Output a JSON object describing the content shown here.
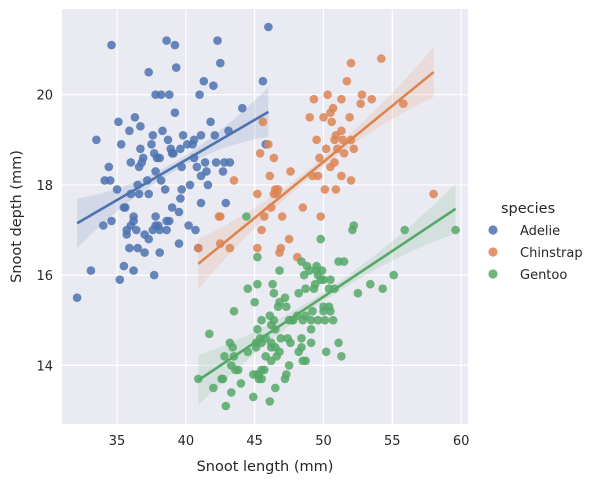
{
  "chart_data": {
    "type": "scatter",
    "xlabel": "Snoot length (mm)",
    "ylabel": "Snoot depth (mm)",
    "xlim": [
      31,
      60.5
    ],
    "ylim": [
      12.7,
      21.9
    ],
    "xticks": [
      35,
      40,
      45,
      50,
      55,
      60
    ],
    "yticks": [
      14,
      16,
      18,
      20
    ],
    "grid": true,
    "legend": {
      "title": "species",
      "placement": "right"
    },
    "series": [
      {
        "name": "Adelie",
        "color": "#4c72b0",
        "regression": {
          "x": [
            32.1,
            46.0
          ],
          "y": [
            17.15,
            19.62
          ]
        },
        "points": [
          [
            32.1,
            15.5
          ],
          [
            33.1,
            16.1
          ],
          [
            33.5,
            19.0
          ],
          [
            34.0,
            17.1
          ],
          [
            34.1,
            18.1
          ],
          [
            34.4,
            18.4
          ],
          [
            34.5,
            18.1
          ],
          [
            34.6,
            21.1
          ],
          [
            34.6,
            17.2
          ],
          [
            35.0,
            17.9
          ],
          [
            35.1,
            19.4
          ],
          [
            35.2,
            15.9
          ],
          [
            35.3,
            18.9
          ],
          [
            35.5,
            16.2
          ],
          [
            35.5,
            17.5
          ],
          [
            35.6,
            17.5
          ],
          [
            35.7,
            16.9
          ],
          [
            35.7,
            17.0
          ],
          [
            35.9,
            16.6
          ],
          [
            35.9,
            19.2
          ],
          [
            36.0,
            18.5
          ],
          [
            36.0,
            17.8
          ],
          [
            36.0,
            17.1
          ],
          [
            36.2,
            16.1
          ],
          [
            36.2,
            17.2
          ],
          [
            36.2,
            17.3
          ],
          [
            36.3,
            19.5
          ],
          [
            36.4,
            17.0
          ],
          [
            36.5,
            18.0
          ],
          [
            36.5,
            16.6
          ],
          [
            36.6,
            17.8
          ],
          [
            36.6,
            18.4
          ],
          [
            36.7,
            19.3
          ],
          [
            36.7,
            18.8
          ],
          [
            36.8,
            18.5
          ],
          [
            36.9,
            18.6
          ],
          [
            37.0,
            16.9
          ],
          [
            37.0,
            16.5
          ],
          [
            37.2,
            18.1
          ],
          [
            37.3,
            20.5
          ],
          [
            37.3,
            17.8
          ],
          [
            37.3,
            16.8
          ],
          [
            37.5,
            18.9
          ],
          [
            37.6,
            19.1
          ],
          [
            37.6,
            17.0
          ],
          [
            37.7,
            18.7
          ],
          [
            37.7,
            16.0
          ],
          [
            37.8,
            18.3
          ],
          [
            37.8,
            20.0
          ],
          [
            37.8,
            17.1
          ],
          [
            37.8,
            17.3
          ],
          [
            37.9,
            18.6
          ],
          [
            38.0,
            17.1
          ],
          [
            38.1,
            18.6
          ],
          [
            38.1,
            17.0
          ],
          [
            38.1,
            16.5
          ],
          [
            38.2,
            18.1
          ],
          [
            38.2,
            20.0
          ],
          [
            38.3,
            19.2
          ],
          [
            38.5,
            17.9
          ],
          [
            38.6,
            21.2
          ],
          [
            38.6,
            17.2
          ],
          [
            38.6,
            17.0
          ],
          [
            38.7,
            19.0
          ],
          [
            38.8,
            17.2
          ],
          [
            38.8,
            20.0
          ],
          [
            38.9,
            18.8
          ],
          [
            39.0,
            17.5
          ],
          [
            39.0,
            18.7
          ],
          [
            39.1,
            18.7
          ],
          [
            39.2,
            19.6
          ],
          [
            39.2,
            21.1
          ],
          [
            39.3,
            20.6
          ],
          [
            39.5,
            17.4
          ],
          [
            39.5,
            16.7
          ],
          [
            39.6,
            18.8
          ],
          [
            39.6,
            17.7
          ],
          [
            39.7,
            18.4
          ],
          [
            39.7,
            17.9
          ],
          [
            39.8,
            19.1
          ],
          [
            40.1,
            18.9
          ],
          [
            40.2,
            17.1
          ],
          [
            40.3,
            18.0
          ],
          [
            40.5,
            18.9
          ],
          [
            40.6,
            18.6
          ],
          [
            40.6,
            19.0
          ],
          [
            40.7,
            17.0
          ],
          [
            40.8,
            18.4
          ],
          [
            40.9,
            16.6
          ],
          [
            41.0,
            20.0
          ],
          [
            41.1,
            17.6
          ],
          [
            41.1,
            18.2
          ],
          [
            41.1,
            19.1
          ],
          [
            41.3,
            20.3
          ],
          [
            41.4,
            18.5
          ],
          [
            41.5,
            18.3
          ],
          [
            41.6,
            18.0
          ],
          [
            41.8,
            19.4
          ],
          [
            42.0,
            20.2
          ],
          [
            42.1,
            19.1
          ],
          [
            42.2,
            18.5
          ],
          [
            42.3,
            21.2
          ],
          [
            42.5,
            20.7
          ],
          [
            42.7,
            18.3
          ],
          [
            42.8,
            18.5
          ],
          [
            42.9,
            17.6
          ],
          [
            43.1,
            19.2
          ],
          [
            43.2,
            18.5
          ],
          [
            44.1,
            19.7
          ],
          [
            45.6,
            20.3
          ],
          [
            45.8,
            18.9
          ],
          [
            46.0,
            21.5
          ]
        ]
      },
      {
        "name": "Chinstrap",
        "color": "#dd8452",
        "regression": {
          "x": [
            40.9,
            58.0
          ],
          "y": [
            16.25,
            20.5
          ]
        },
        "points": [
          [
            40.9,
            16.6
          ],
          [
            42.4,
            17.3
          ],
          [
            42.5,
            17.3
          ],
          [
            42.5,
            16.7
          ],
          [
            43.2,
            16.6
          ],
          [
            43.5,
            18.1
          ],
          [
            45.2,
            16.6
          ],
          [
            45.2,
            17.8
          ],
          [
            45.4,
            18.7
          ],
          [
            45.5,
            17.0
          ],
          [
            45.6,
            19.4
          ],
          [
            45.7,
            17.3
          ],
          [
            46.0,
            18.9
          ],
          [
            46.1,
            18.2
          ],
          [
            46.2,
            17.5
          ],
          [
            46.4,
            17.8
          ],
          [
            46.4,
            18.6
          ],
          [
            46.5,
            17.9
          ],
          [
            46.6,
            17.8
          ],
          [
            46.7,
            17.9
          ],
          [
            46.8,
            16.5
          ],
          [
            46.9,
            16.6
          ],
          [
            47.0,
            17.3
          ],
          [
            47.5,
            16.8
          ],
          [
            47.6,
            18.3
          ],
          [
            48.1,
            16.4
          ],
          [
            48.5,
            17.5
          ],
          [
            49.0,
            19.5
          ],
          [
            49.2,
            18.2
          ],
          [
            49.3,
            19.9
          ],
          [
            49.5,
            19.0
          ],
          [
            49.6,
            18.2
          ],
          [
            49.7,
            18.6
          ],
          [
            49.8,
            17.3
          ],
          [
            50.0,
            19.5
          ],
          [
            50.1,
            17.9
          ],
          [
            50.2,
            18.8
          ],
          [
            50.3,
            20.0
          ],
          [
            50.5,
            18.4
          ],
          [
            50.5,
            19.6
          ],
          [
            50.6,
            19.4
          ],
          [
            50.7,
            19.7
          ],
          [
            50.8,
            18.5
          ],
          [
            50.8,
            19.0
          ],
          [
            50.9,
            17.9
          ],
          [
            50.9,
            19.1
          ],
          [
            51.0,
            18.8
          ],
          [
            51.3,
            19.2
          ],
          [
            51.3,
            18.2
          ],
          [
            51.3,
            19.9
          ],
          [
            51.4,
            19.0
          ],
          [
            51.5,
            18.7
          ],
          [
            51.7,
            20.3
          ],
          [
            51.9,
            19.5
          ],
          [
            52.0,
            18.1
          ],
          [
            52.0,
            19.0
          ],
          [
            52.0,
            20.7
          ],
          [
            52.2,
            18.8
          ],
          [
            52.7,
            19.8
          ],
          [
            52.8,
            20.0
          ],
          [
            53.5,
            19.9
          ],
          [
            54.2,
            20.8
          ],
          [
            55.8,
            19.8
          ],
          [
            58.0,
            17.8
          ]
        ]
      },
      {
        "name": "Gentoo",
        "color": "#55a868",
        "regression": {
          "x": [
            40.9,
            59.6
          ],
          "y": [
            13.67,
            17.47
          ]
        },
        "points": [
          [
            40.9,
            13.7
          ],
          [
            41.7,
            14.7
          ],
          [
            42.0,
            13.5
          ],
          [
            42.6,
            13.7
          ],
          [
            42.7,
            13.7
          ],
          [
            42.8,
            14.2
          ],
          [
            42.9,
            13.1
          ],
          [
            43.2,
            14.5
          ],
          [
            43.3,
            13.4
          ],
          [
            43.3,
            14.0
          ],
          [
            43.4,
            14.4
          ],
          [
            43.5,
            14.2
          ],
          [
            43.5,
            15.2
          ],
          [
            43.6,
            13.9
          ],
          [
            43.8,
            13.9
          ],
          [
            44.0,
            13.6
          ],
          [
            44.4,
            17.3
          ],
          [
            44.5,
            14.3
          ],
          [
            44.5,
            15.7
          ],
          [
            44.9,
            13.3
          ],
          [
            44.9,
            13.8
          ],
          [
            45.0,
            15.4
          ],
          [
            45.1,
            14.5
          ],
          [
            45.1,
            14.4
          ],
          [
            45.2,
            13.8
          ],
          [
            45.2,
            14.8
          ],
          [
            45.2,
            15.8
          ],
          [
            45.2,
            16.4
          ],
          [
            45.3,
            13.7
          ],
          [
            45.3,
            13.8
          ],
          [
            45.4,
            14.6
          ],
          [
            45.5,
            13.7
          ],
          [
            45.5,
            13.9
          ],
          [
            45.5,
            14.5
          ],
          [
            45.5,
            15.0
          ],
          [
            45.7,
            13.9
          ],
          [
            45.8,
            14.2
          ],
          [
            45.8,
            14.6
          ],
          [
            46.1,
            13.2
          ],
          [
            46.1,
            15.1
          ],
          [
            46.2,
            14.1
          ],
          [
            46.2,
            14.4
          ],
          [
            46.2,
            14.5
          ],
          [
            46.2,
            14.9
          ],
          [
            46.3,
            15.8
          ],
          [
            46.4,
            15.0
          ],
          [
            46.4,
            15.6
          ],
          [
            46.5,
            13.5
          ],
          [
            46.5,
            14.4
          ],
          [
            46.5,
            14.8
          ],
          [
            46.6,
            14.2
          ],
          [
            46.7,
            15.3
          ],
          [
            46.8,
            14.3
          ],
          [
            46.8,
            15.4
          ],
          [
            46.8,
            16.1
          ],
          [
            46.9,
            14.6
          ],
          [
            47.2,
            13.7
          ],
          [
            47.2,
            15.5
          ],
          [
            47.3,
            13.8
          ],
          [
            47.3,
            15.3
          ],
          [
            47.4,
            14.6
          ],
          [
            47.5,
            14.0
          ],
          [
            47.5,
            15.0
          ],
          [
            47.6,
            14.5
          ],
          [
            47.7,
            15.0
          ],
          [
            47.8,
            15.0
          ],
          [
            48.1,
            15.1
          ],
          [
            48.2,
            14.3
          ],
          [
            48.2,
            15.6
          ],
          [
            48.4,
            14.4
          ],
          [
            48.4,
            14.6
          ],
          [
            48.4,
            16.3
          ],
          [
            48.5,
            14.1
          ],
          [
            48.5,
            15.0
          ],
          [
            48.6,
            16.0
          ],
          [
            48.7,
            14.1
          ],
          [
            48.7,
            15.1
          ],
          [
            48.7,
            15.7
          ],
          [
            48.8,
            16.2
          ],
          [
            49.0,
            16.1
          ],
          [
            49.1,
            14.5
          ],
          [
            49.1,
            14.8
          ],
          [
            49.1,
            15.0
          ],
          [
            49.2,
            15.2
          ],
          [
            49.3,
            15.7
          ],
          [
            49.4,
            15.8
          ],
          [
            49.5,
            16.1
          ],
          [
            49.5,
            16.2
          ],
          [
            49.6,
            15.0
          ],
          [
            49.6,
            16.0
          ],
          [
            49.8,
            15.9
          ],
          [
            49.8,
            16.8
          ],
          [
            49.9,
            16.1
          ],
          [
            50.0,
            15.2
          ],
          [
            50.0,
            15.3
          ],
          [
            50.0,
            15.9
          ],
          [
            50.1,
            15.0
          ],
          [
            50.2,
            14.3
          ],
          [
            50.4,
            15.3
          ],
          [
            50.4,
            15.7
          ],
          [
            50.5,
            15.2
          ],
          [
            50.5,
            15.9
          ],
          [
            50.7,
            15.0
          ],
          [
            50.8,
            15.7
          ],
          [
            51.1,
            14.5
          ],
          [
            51.1,
            16.3
          ],
          [
            51.3,
            14.2
          ],
          [
            51.5,
            16.3
          ],
          [
            52.1,
            17.0
          ],
          [
            52.2,
            17.1
          ],
          [
            52.5,
            15.6
          ],
          [
            53.4,
            15.8
          ],
          [
            54.3,
            15.7
          ],
          [
            55.1,
            16.0
          ],
          [
            55.9,
            17.0
          ],
          [
            59.6,
            17.0
          ]
        ]
      }
    ]
  }
}
